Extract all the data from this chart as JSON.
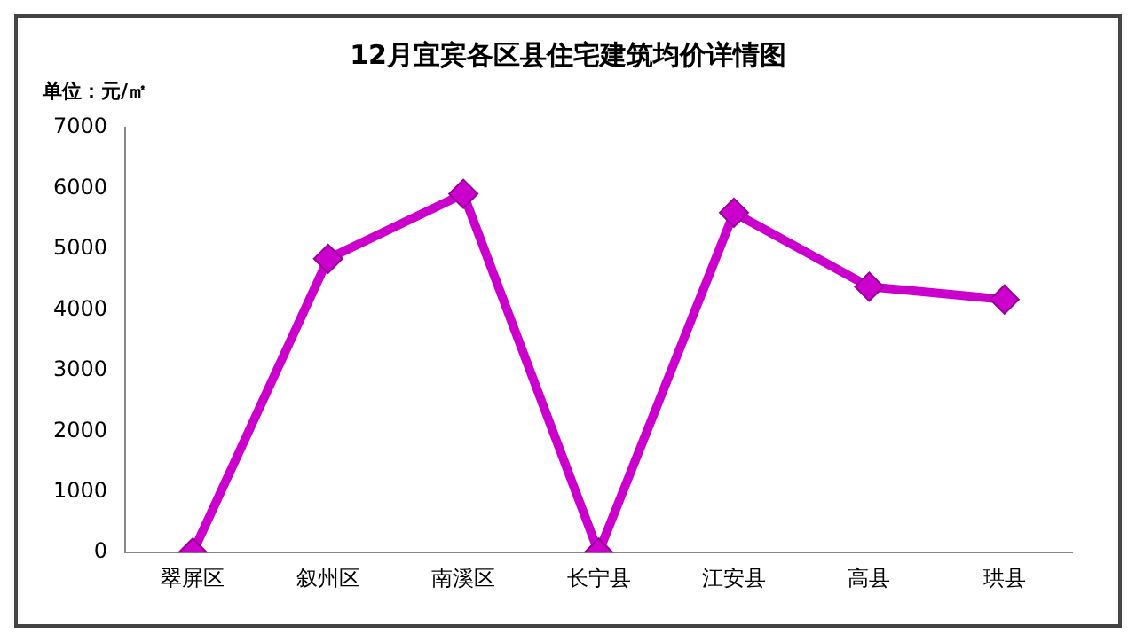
{
  "chart_data": {
    "type": "line",
    "title": "12月宜宾各区县住宅建筑均价详情图",
    "ylabel": "单位：元/㎡",
    "categories": [
      "翠屏区",
      "叙州区",
      "南溪区",
      "长宁县",
      "江安县",
      "高县",
      "珙县"
    ],
    "series": [
      {
        "color": "#cc00cc",
        "values": [
          0,
          4840,
          5910,
          0,
          5600,
          4380,
          4170
        ]
      }
    ],
    "ylim": [
      0,
      7000
    ],
    "yticks": [
      0,
      1000,
      2000,
      3000,
      4000,
      5000,
      6000,
      7000
    ],
    "grid": false,
    "legend": false,
    "marker": "diamond",
    "line_style": "solid"
  }
}
